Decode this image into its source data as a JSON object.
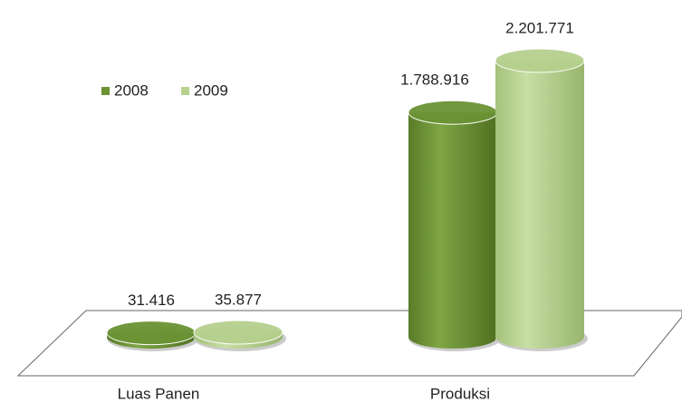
{
  "chart_data": {
    "type": "cylinder",
    "categories": [
      "Luas Panen",
      "Produksi"
    ],
    "series": [
      {
        "name": "2008",
        "color": "#6b9334",
        "values": [
          31416,
          1788916
        ],
        "value_labels": [
          "31.416",
          "1.788.916"
        ]
      },
      {
        "name": "2009",
        "color": "#b6d08e",
        "values": [
          35877,
          2201771
        ],
        "value_labels": [
          "35.877",
          "2.201.771"
        ]
      }
    ]
  }
}
